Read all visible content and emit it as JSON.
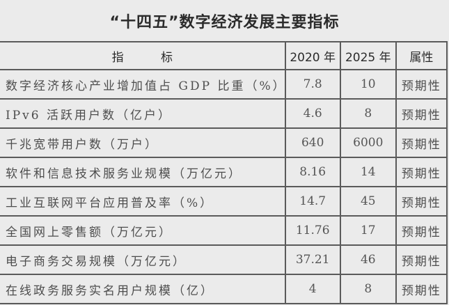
{
  "title": "“十四五”数字经济发展主要指标",
  "table": {
    "headers": {
      "indicator": "指 标",
      "year_2020": "2020 年",
      "year_2025": "2025 年",
      "attribute": "属性"
    },
    "rows": [
      {
        "indicator": "数字经济核心产业增加值占 GDP 比重（%）",
        "year_2020": "7.8",
        "year_2025": "10",
        "attribute": "预期性"
      },
      {
        "indicator": "IPv6 活跃用户数（亿户）",
        "year_2020": "4.6",
        "year_2025": "8",
        "attribute": "预期性"
      },
      {
        "indicator": "千兆宽带用户数（万户）",
        "year_2020": "640",
        "year_2025": "6000",
        "attribute": "预期性"
      },
      {
        "indicator": "软件和信息技术服务业规模（万亿元）",
        "year_2020": "8.16",
        "year_2025": "14",
        "attribute": "预期性"
      },
      {
        "indicator": "工业互联网平台应用普及率（%）",
        "year_2020": "14.7",
        "year_2025": "45",
        "attribute": "预期性"
      },
      {
        "indicator": "全国网上零售额（万亿元）",
        "year_2020": "11.76",
        "year_2025": "17",
        "attribute": "预期性"
      },
      {
        "indicator": "电子商务交易规模（万亿元）",
        "year_2020": "37.21",
        "year_2025": "46",
        "attribute": "预期性"
      },
      {
        "indicator": "在线政务服务实名用户规模（亿）",
        "year_2020": "4",
        "year_2025": "8",
        "attribute": "预期性"
      }
    ]
  }
}
